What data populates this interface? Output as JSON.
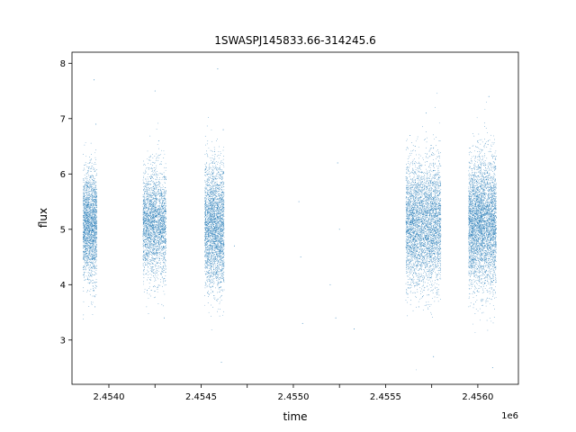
{
  "chart_data": {
    "type": "scatter",
    "title": "1SWASPJ145833.66-314245.6",
    "xlabel": "time",
    "ylabel": "flux",
    "x_offset_label": "1e6",
    "xlim": [
      2453800,
      2456220
    ],
    "ylim": [
      2.2,
      8.2
    ],
    "x_ticks": [
      2453750,
      2454000,
      2454250,
      2454500,
      2454750,
      2455000,
      2455250,
      2455500,
      2455750,
      2456000
    ],
    "x_tick_labels": [
      "",
      "2.4540",
      "",
      "2.4545",
      "",
      "2.4550",
      "",
      "2.4555",
      "",
      "2.4560"
    ],
    "y_ticks": [
      3,
      4,
      5,
      6,
      7,
      8
    ],
    "y_tick_labels": [
      "3",
      "4",
      "5",
      "6",
      "7",
      "8"
    ],
    "grid": false,
    "point_color": "#1f77b4",
    "series": [
      {
        "values": [
          [
            2453870,
            5.3
          ],
          [
            2453875,
            4.6
          ],
          [
            2453880,
            5.8
          ],
          [
            2453885,
            4.1
          ],
          [
            2453890,
            5.5
          ],
          [
            2453895,
            6.2
          ],
          [
            2453900,
            4.4
          ],
          [
            2453905,
            5.1
          ],
          [
            2453910,
            5.9
          ],
          [
            2453915,
            4.8
          ],
          [
            2453920,
            7.7
          ],
          [
            2453925,
            3.6
          ],
          [
            2453930,
            6.9
          ],
          [
            2454200,
            5.2
          ],
          [
            2454210,
            4.5
          ],
          [
            2454220,
            6.3
          ],
          [
            2454230,
            3.9
          ],
          [
            2454240,
            5.7
          ],
          [
            2454250,
            7.5
          ],
          [
            2454260,
            4.8
          ],
          [
            2454270,
            6.6
          ],
          [
            2454280,
            4.2
          ],
          [
            2454290,
            5.0
          ],
          [
            2454300,
            3.4
          ],
          [
            2454310,
            5.9
          ],
          [
            2454540,
            5.1
          ],
          [
            2454550,
            4.3
          ],
          [
            2454560,
            6.2
          ],
          [
            2454570,
            3.8
          ],
          [
            2454580,
            5.6
          ],
          [
            2454590,
            7.9
          ],
          [
            2454600,
            4.6
          ],
          [
            2454610,
            2.6
          ],
          [
            2454620,
            6.8
          ],
          [
            2454680,
            4.7
          ],
          [
            2455030,
            5.5
          ],
          [
            2455040,
            4.5
          ],
          [
            2455050,
            3.3
          ],
          [
            2455200,
            4.0
          ],
          [
            2455230,
            3.4
          ],
          [
            2455240,
            6.2
          ],
          [
            2455250,
            5.0
          ],
          [
            2455330,
            3.2
          ],
          [
            2455620,
            5.2
          ],
          [
            2455640,
            4.1
          ],
          [
            2455660,
            6.5
          ],
          [
            2455680,
            3.6
          ],
          [
            2455700,
            5.8
          ],
          [
            2455720,
            7.1
          ],
          [
            2455740,
            4.6
          ],
          [
            2455760,
            2.7
          ],
          [
            2455780,
            6.0
          ],
          [
            2455800,
            4.9
          ],
          [
            2455960,
            5.3
          ],
          [
            2455980,
            4.2
          ],
          [
            2456000,
            6.6
          ],
          [
            2456020,
            3.7
          ],
          [
            2456040,
            5.8
          ],
          [
            2456060,
            7.4
          ],
          [
            2456070,
            4.5
          ],
          [
            2456080,
            2.5
          ],
          [
            2456090,
            6.2
          ],
          [
            2456100,
            5.0
          ]
        ]
      }
    ],
    "clusters": [
      {
        "x_min": 2453860,
        "x_max": 2453935,
        "n": 2200,
        "y_mean": 5.05,
        "y_sd": 0.48
      },
      {
        "x_min": 2454185,
        "x_max": 2454310,
        "n": 2600,
        "y_mean": 5.1,
        "y_sd": 0.48
      },
      {
        "x_min": 2454520,
        "x_max": 2454625,
        "n": 2900,
        "y_mean": 5.05,
        "y_sd": 0.55
      },
      {
        "x_min": 2455610,
        "x_max": 2455800,
        "n": 4200,
        "y_mean": 5.1,
        "y_sd": 0.55
      },
      {
        "x_min": 2455950,
        "x_max": 2456100,
        "n": 4200,
        "y_mean": 5.1,
        "y_sd": 0.58
      }
    ]
  }
}
